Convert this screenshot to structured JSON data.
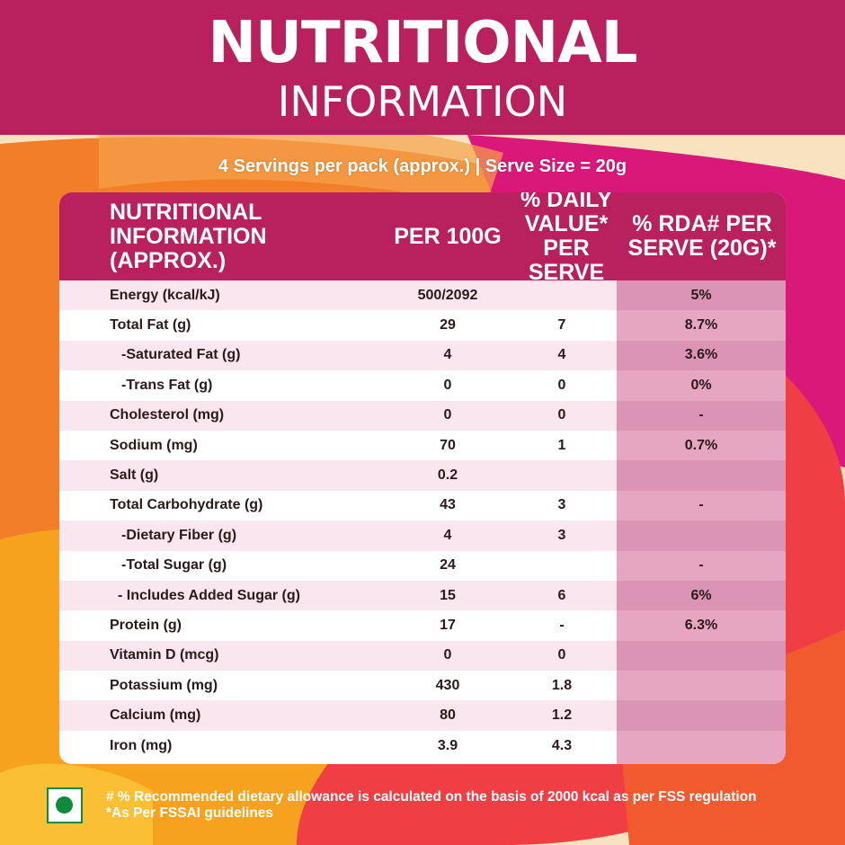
{
  "header": {
    "title_line1": "NUTRITIONAL",
    "title_line2": "INFORMATION"
  },
  "serving_info": "4 Servings per pack (approx.) | Serve Size = 20g",
  "table": {
    "columns": {
      "name": "NUTRITIONAL INFORMATION (APPROX.)",
      "per_100g": "PER 100G",
      "daily_value": "% DAILY VALUE* PER SERVE",
      "rda": "% RDA# PER SERVE (20G)*"
    },
    "rows": [
      {
        "name": "Energy (kcal/kJ)",
        "per_100g": "500/2092",
        "daily_value": "",
        "rda": "5%"
      },
      {
        "name": "Total Fat (g)",
        "per_100g": "29",
        "daily_value": "7",
        "rda": "8.7%"
      },
      {
        "name": "-Saturated Fat (g)",
        "per_100g": "4",
        "daily_value": "4",
        "rda": "3.6%"
      },
      {
        "name": "-Trans Fat (g)",
        "per_100g": "0",
        "daily_value": "0",
        "rda": "0%"
      },
      {
        "name": "Cholesterol (mg)",
        "per_100g": "0",
        "daily_value": "0",
        "rda": "-"
      },
      {
        "name": "Sodium (mg)",
        "per_100g": "70",
        "daily_value": "1",
        "rda": "0.7%"
      },
      {
        "name": "Salt (g)",
        "per_100g": "0.2",
        "daily_value": "",
        "rda": ""
      },
      {
        "name": "Total Carbohydrate (g)",
        "per_100g": "43",
        "daily_value": "3",
        "rda": "-"
      },
      {
        "name": "-Dietary Fiber (g)",
        "per_100g": "4",
        "daily_value": "3",
        "rda": ""
      },
      {
        "name": "-Total Sugar (g)",
        "per_100g": "24",
        "daily_value": "",
        "rda": "-"
      },
      {
        "name": "- Includes Added Sugar (g)",
        "per_100g": "15",
        "daily_value": "6",
        "rda": "6%"
      },
      {
        "name": "Protein (g)",
        "per_100g": "17",
        "daily_value": "-",
        "rda": "6.3%"
      },
      {
        "name": "Vitamin D (mcg)",
        "per_100g": "0",
        "daily_value": "0",
        "rda": ""
      },
      {
        "name": "Potassium (mg)",
        "per_100g": "430",
        "daily_value": "1.8",
        "rda": ""
      },
      {
        "name": "Calcium (mg)",
        "per_100g": "80",
        "daily_value": "1.2",
        "rda": ""
      },
      {
        "name": "Iron (mg)",
        "per_100g": "3.9",
        "daily_value": "4.3",
        "rda": ""
      }
    ]
  },
  "footer": {
    "veg_mark_icon": "veg-symbol-icon",
    "note_1": "# % Recommended dietary allowance  is calculated on the basis of 2000 kcal as per FSS regulation",
    "note_2": "*As Per FSSAI guidelines"
  },
  "colors": {
    "header": "#b8205e",
    "rda_column": "#e6a5c1",
    "row_alt": "#f9e6ee",
    "veg_green": "#108a3c"
  }
}
